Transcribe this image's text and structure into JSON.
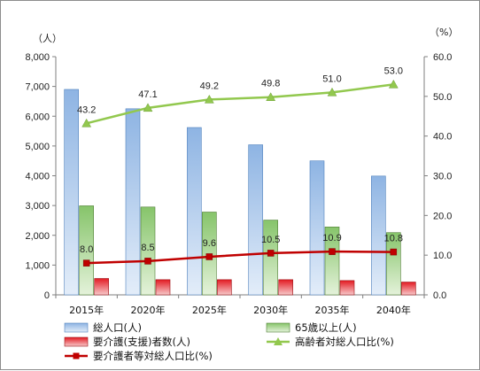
{
  "chart_data": {
    "type": "bar",
    "categories": [
      "2015年",
      "2020年",
      "2025年",
      "2030年",
      "2035年",
      "2040年"
    ],
    "y_left_unit": "（人）",
    "y_right_unit": "（%）",
    "y_left_ticks": [
      "0",
      "1,000",
      "2,000",
      "3,000",
      "4,000",
      "5,000",
      "6,000",
      "7,000",
      "8,000"
    ],
    "y_right_ticks": [
      "0.0",
      "10.0",
      "20.0",
      "30.0",
      "40.0",
      "50.0",
      "60.0"
    ],
    "ylim_left": [
      0,
      8000
    ],
    "ylim_right": [
      0,
      60
    ],
    "grid": false,
    "legend_position": "bottom",
    "series": [
      {
        "name": "総人口(人)",
        "kind": "bar",
        "axis": "left",
        "color": "#8eb4e3",
        "values": [
          6900,
          6250,
          5620,
          5040,
          4500,
          3990
        ]
      },
      {
        "name": "65歳以上(人)",
        "kind": "bar",
        "axis": "left",
        "color": "#9bd17e",
        "values": [
          2990,
          2950,
          2780,
          2510,
          2280,
          2090
        ]
      },
      {
        "name": "要介護(支援)者数(人)",
        "kind": "bar",
        "axis": "left",
        "color": "#e8262b",
        "values": [
          550,
          510,
          510,
          510,
          480,
          430
        ]
      },
      {
        "name": "高齢者対総人口比(%)",
        "kind": "line",
        "axis": "right",
        "color": "#92c84e",
        "marker": "triangle",
        "values": [
          43.2,
          47.1,
          49.2,
          49.8,
          51.0,
          53.0
        ],
        "labels": [
          "43.2",
          "47.1",
          "49.2",
          "49.8",
          "51.0",
          "53.0"
        ]
      },
      {
        "name": "要介護者等対総人口比(%)",
        "kind": "line",
        "axis": "right",
        "color": "#c00000",
        "marker": "square",
        "values": [
          8.0,
          8.5,
          9.6,
          10.5,
          10.9,
          10.8
        ],
        "labels": [
          "8.0",
          "8.5",
          "9.6",
          "10.5",
          "10.9",
          "10.8"
        ]
      }
    ]
  }
}
